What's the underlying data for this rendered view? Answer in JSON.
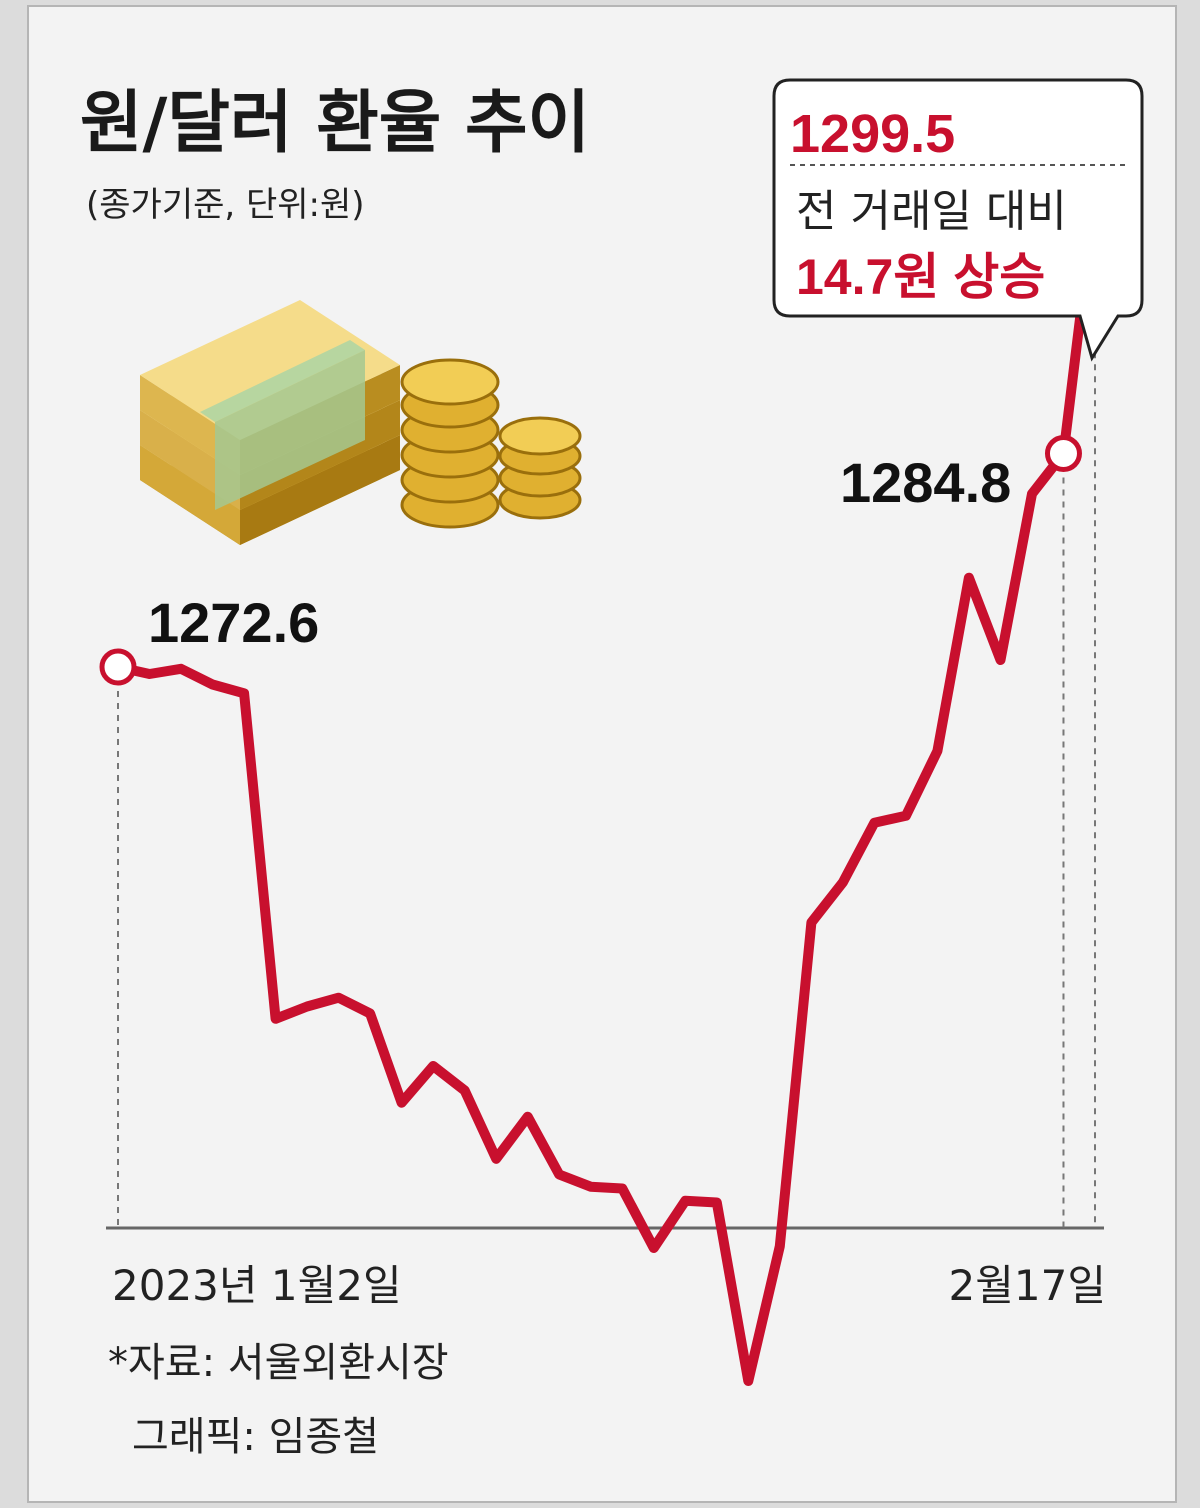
{
  "title": "원/달러 환율 추이",
  "subtitle": "(종가기준, 단위:원)",
  "callout": {
    "value": "1299.5",
    "line1": "전 거래일 대비",
    "line2": "14.7원 상승"
  },
  "footer": {
    "source": "*자료: 서울외환시장",
    "graphic": "그래픽: 임종철"
  },
  "colors": {
    "line": "#c8102e",
    "background": "#dcdcdc"
  },
  "illustration": "money-stack-and-coins",
  "chart_data": {
    "type": "line",
    "title": "원/달러 환율 추이",
    "unit": "원",
    "x_labels": [
      "2023년 1월2일",
      "2월17일"
    ],
    "series": [
      {
        "values": [
          1272.6,
          1272.2,
          1272.5,
          1271.6,
          1271.1,
          1252.5,
          1253.2,
          1253.7,
          1252.8,
          1247.7,
          1249.8,
          1248.4,
          1244.5,
          1246.9,
          1243.6,
          1242.9,
          1242.8,
          1239.4,
          1242.1,
          1242.0,
          1231.8,
          1239.5,
          1258.0,
          1260.3,
          1263.7,
          1264.1,
          1267.8,
          1277.7,
          1273.0,
          1282.5,
          1284.8,
          1299.5
        ]
      }
    ],
    "annotated_points": [
      {
        "label": "1272.6",
        "value": 1272.6,
        "index": 0
      },
      {
        "label": "1284.8",
        "value": 1284.8,
        "index": 30
      },
      {
        "label": "1299.5",
        "value": 1299.5,
        "index": 31
      }
    ],
    "ylim": [
      1225,
      1305
    ],
    "grid": false
  }
}
